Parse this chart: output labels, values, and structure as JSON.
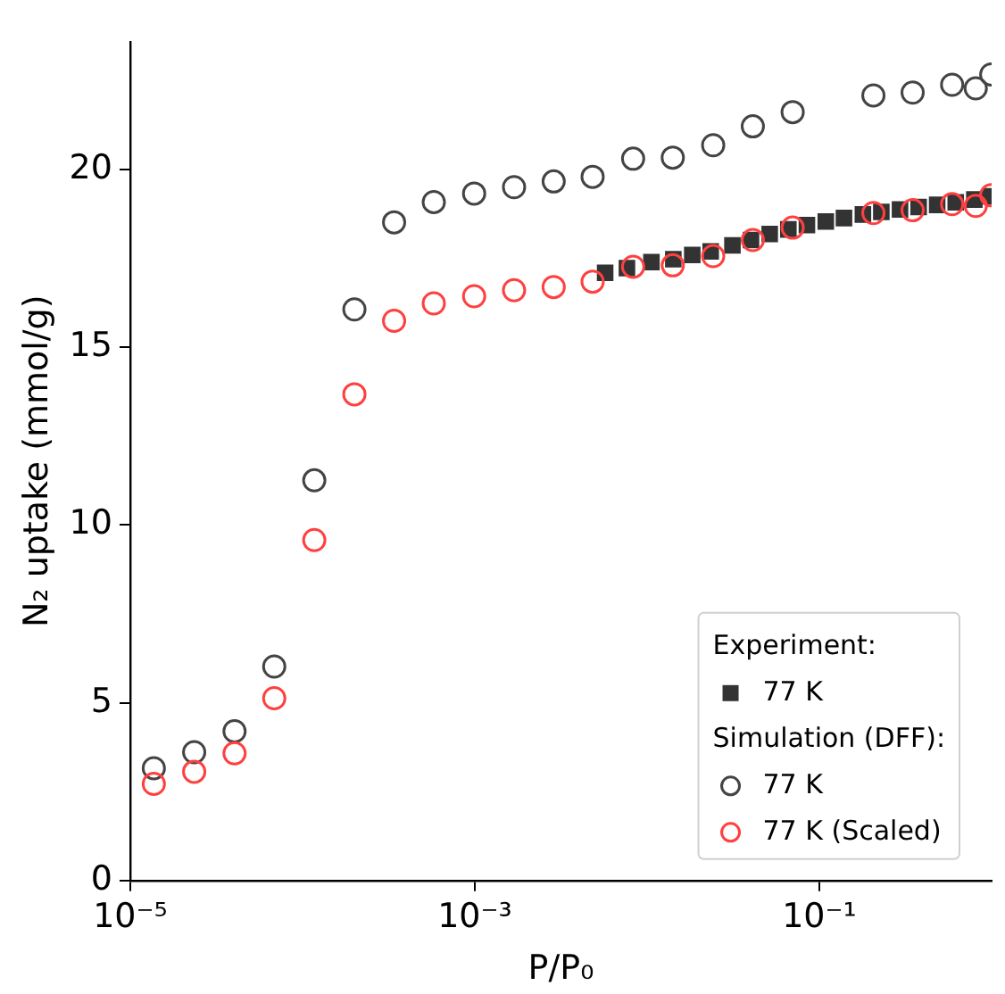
{
  "chart_data": {
    "type": "scatter",
    "xlabel": "P/P₀",
    "ylabel": "N₂ uptake (mmol/g)",
    "legend_title": "Experiment:",
    "annotations": [
      "Simulation (DFF):"
    ],
    "log": "x",
    "xlim": [
      1e-05,
      1
    ],
    "ylim": [
      0,
      23.6
    ],
    "xticks": [
      {
        "value": 1e-05,
        "label": "10⁻⁵"
      },
      {
        "value": 0.001,
        "label": "10⁻³"
      },
      {
        "value": 0.1,
        "label": "10⁻¹"
      }
    ],
    "yticks": [
      0,
      5,
      10,
      15,
      20
    ],
    "grid": false,
    "legend": "bottom right",
    "series": [
      {
        "name": "77 K",
        "color": "#333333",
        "marker": "square",
        "x": [
          0.00571,
          0.00764,
          0.0106,
          0.0142,
          0.0183,
          0.0234,
          0.0313,
          0.0401,
          0.0515,
          0.0661,
          0.0847,
          0.109,
          0.139,
          0.179,
          0.229,
          0.294,
          0.377,
          0.483,
          0.619,
          0.794,
          0.979
        ],
        "values": [
          17.1,
          17.23,
          17.4,
          17.48,
          17.6,
          17.7,
          17.87,
          18.02,
          18.19,
          18.32,
          18.44,
          18.54,
          18.64,
          18.74,
          18.81,
          18.88,
          18.95,
          19.01,
          19.08,
          19.16,
          19.25
        ]
      },
      {
        "name": "77 K",
        "color": "#444444",
        "marker": "circle",
        "x": [
          1.37e-05,
          2.35e-05,
          4.03e-05,
          6.85e-05,
          0.000117,
          0.0002,
          0.00034,
          0.000578,
          0.000991,
          0.00169,
          0.00287,
          0.00483,
          0.0083,
          0.0141,
          0.0242,
          0.0411,
          0.07,
          0.206,
          0.348,
          0.59,
          0.809,
          0.995
        ],
        "values": [
          3.16,
          3.61,
          4.2,
          6.02,
          11.26,
          16.07,
          18.52,
          19.09,
          19.33,
          19.51,
          19.67,
          19.8,
          20.31,
          20.34,
          20.69,
          21.22,
          21.62,
          22.09,
          22.17,
          22.39,
          22.29,
          22.68
        ]
      },
      {
        "name": "77 K (Scaled)",
        "color": "#ff4040",
        "marker": "circle",
        "x": [
          1.37e-05,
          2.35e-05,
          4.03e-05,
          6.85e-05,
          0.000117,
          0.0002,
          0.00034,
          0.000578,
          0.000991,
          0.00169,
          0.00287,
          0.00483,
          0.0083,
          0.0141,
          0.0242,
          0.0411,
          0.07,
          0.206,
          0.348,
          0.59,
          0.809,
          0.995
        ],
        "values": [
          2.72,
          3.06,
          3.58,
          5.13,
          9.58,
          13.68,
          15.75,
          16.24,
          16.44,
          16.61,
          16.7,
          16.85,
          17.27,
          17.31,
          17.57,
          18.02,
          18.37,
          18.78,
          18.86,
          19.03,
          18.98,
          19.28
        ]
      }
    ]
  }
}
